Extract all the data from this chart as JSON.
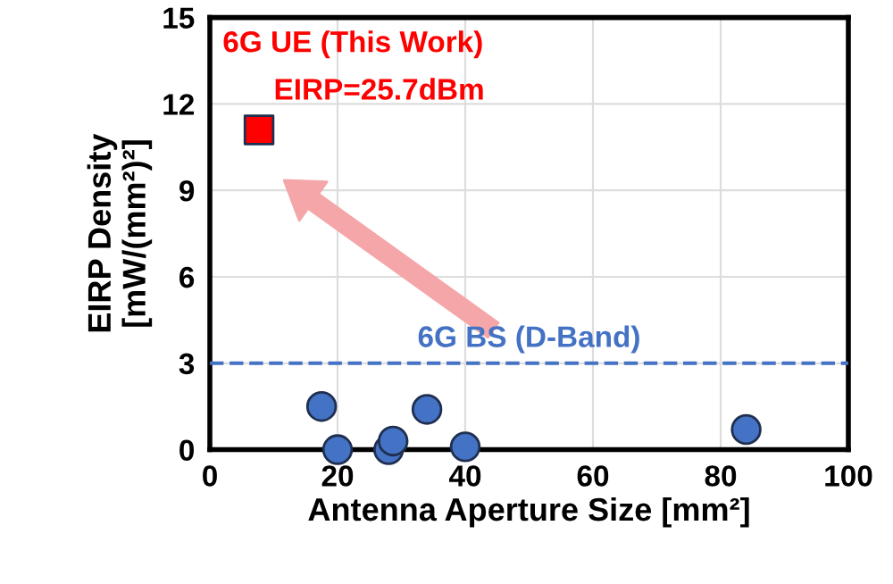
{
  "chart_data": {
    "type": "scatter",
    "xlabel": "Antenna Aperture Size [mm²]",
    "ylabel": "EIRP Density\n[mW/(mm²)²]",
    "series": [
      {
        "color": "#4472c4",
        "marker": "circle",
        "x": [
          17.5,
          20,
          28,
          28.7,
          34,
          40,
          84
        ],
        "values": [
          1.5,
          0,
          0,
          0.3,
          1.4,
          0.1,
          0.7
        ]
      },
      {
        "color": "#ff0000",
        "marker": "square",
        "x": [
          7.7
        ],
        "values": [
          11.1
        ]
      }
    ],
    "annotations": [
      "6G UE (This Work)",
      "EIRP=25.7dBm"
    ],
    "ref_lines": [
      {
        "axis": "y",
        "value": 3,
        "label": "6G BS (D-Band)",
        "color": "#4472c4",
        "line_style": "dashed"
      }
    ],
    "xlim": [
      0,
      100
    ],
    "xticks": [
      0,
      20,
      40,
      60,
      80,
      100
    ],
    "ylim": [
      0,
      15
    ],
    "yticks": [
      0,
      3,
      6,
      9,
      12,
      15
    ],
    "grid": true
  }
}
